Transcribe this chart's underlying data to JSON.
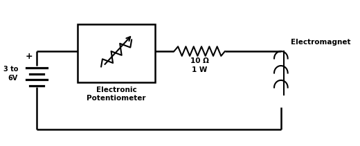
{
  "background_color": "#ffffff",
  "line_color": "#000000",
  "line_width": 1.8,
  "battery_label": "3 to\n6V",
  "battery_plus": "+",
  "potentiometer_label": "Electronic\nPotentiometer",
  "resistor_label": "10 Ω\n1 W",
  "electromagnet_label": "Electromagnet",
  "figsize": [
    5.2,
    2.11
  ],
  "dpi": 100
}
